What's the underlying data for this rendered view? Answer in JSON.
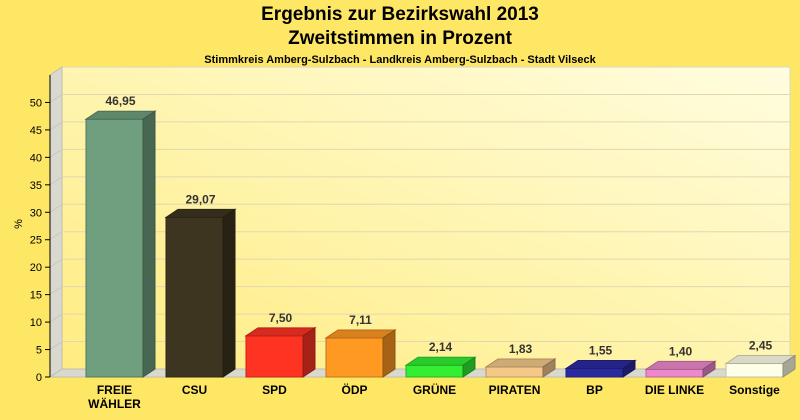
{
  "header": {
    "title_line1": "Ergebnis zur Bezirkswahl 2013",
    "title_line2": "Zweitstimmen in Prozent",
    "subtitle": "Stimmkreis Amberg-Sulzbach - Landkreis Amberg-Sulzbach - Stadt Vilseck"
  },
  "chart_data": {
    "type": "bar",
    "title": "Ergebnis zur Bezirkswahl 2013 / Zweitstimmen in Prozent",
    "subtitle": "Stimmkreis Amberg-Sulzbach - Landkreis Amberg-Sulzbach - Stadt Vilseck",
    "ylabel": "%",
    "xlabel": "",
    "ylim": [
      0,
      55
    ],
    "yticks": [
      0,
      5,
      10,
      15,
      20,
      25,
      30,
      35,
      40,
      45,
      50
    ],
    "grid": true,
    "categories": [
      [
        "FREIE",
        "WÄHLER"
      ],
      [
        "CSU"
      ],
      [
        "SPD"
      ],
      [
        "ÖDP"
      ],
      [
        "GRÜNE"
      ],
      [
        "PIRATEN"
      ],
      [
        "BP"
      ],
      [
        "DIE LINKE"
      ],
      [
        "Sonstige"
      ]
    ],
    "values": [
      46.95,
      29.07,
      7.5,
      7.11,
      2.14,
      1.83,
      1.55,
      1.4,
      2.45
    ],
    "value_labels": [
      "46,95",
      "29,07",
      "7,50",
      "7,11",
      "2,14",
      "1,83",
      "1,55",
      "1,40",
      "2,45"
    ],
    "colors": [
      "#6F9F7F",
      "#3D3520",
      "#FF3322",
      "#FF9922",
      "#33EE33",
      "#F5C88A",
      "#2A2AA0",
      "#EE88CC",
      "#FFFFE8"
    ]
  }
}
